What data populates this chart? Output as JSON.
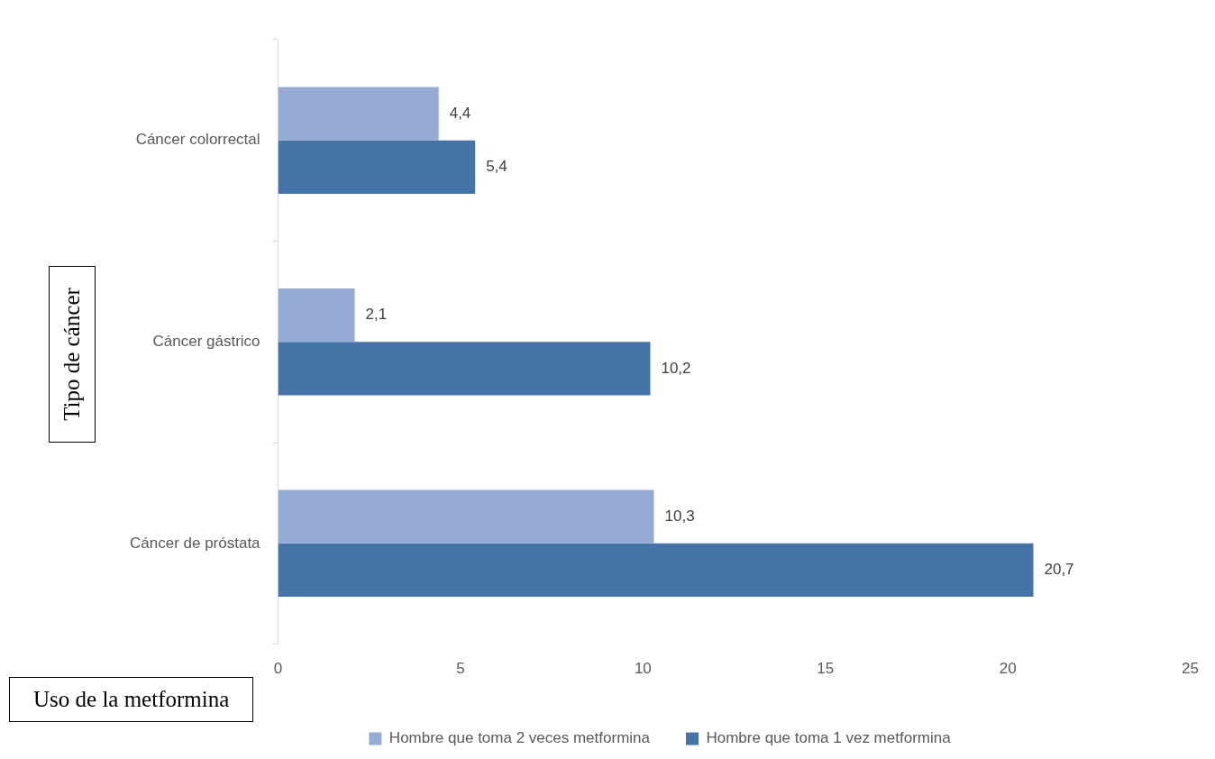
{
  "chart_data": {
    "type": "bar",
    "orientation": "horizontal",
    "xlabel": "Uso de la metformina",
    "ylabel": "Tipo de cáncer",
    "categories": [
      "Cáncer colorrectal",
      "Cáncer gástrico",
      "Cáncer de próstata"
    ],
    "series": [
      {
        "name": "Hombre que toma 2 veces metformina",
        "color": "#95abd3",
        "values": [
          4.4,
          2.1,
          10.3
        ],
        "value_labels": [
          "4,4",
          "2,1",
          "10,3"
        ]
      },
      {
        "name": "Hombre que toma 1 vez metformina",
        "color": "#4674a8",
        "values": [
          5.4,
          10.2,
          20.7
        ],
        "value_labels": [
          "5,4",
          "10,2",
          "20,7"
        ]
      }
    ],
    "xlim": [
      0,
      25
    ],
    "xticks": [
      0,
      5,
      10,
      15,
      20,
      25
    ],
    "grid": false,
    "legend": "bottom"
  }
}
